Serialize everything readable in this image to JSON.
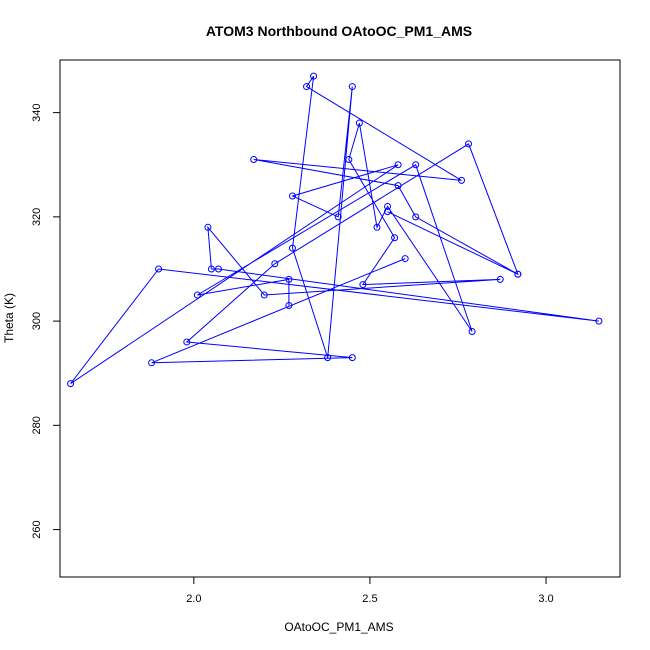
{
  "chart_data": {
    "type": "line",
    "title": "ATOM3 Northbound OAtoOC_PM1_AMS",
    "xlabel": "OAtoOC_PM1_AMS",
    "ylabel": "Theta (K)",
    "xlim": [
      1.62,
      3.21
    ],
    "ylim": [
      250.9,
      350.1
    ],
    "xticks": [
      2.0,
      2.5,
      3.0
    ],
    "xtick_labels": [
      "2.0",
      "2.5",
      "3.0"
    ],
    "yticks": [
      260,
      280,
      300,
      320,
      340
    ],
    "ytick_labels": [
      "260",
      "280",
      "300",
      "320",
      "340"
    ],
    "series_color": "#0000ff",
    "marker": "open-circle",
    "series": [
      {
        "x": [
          2.27,
          2.27,
          2.01,
          2.63,
          2.79,
          2.55,
          2.52,
          2.47,
          2.44,
          2.57,
          2.48,
          2.87,
          2.2,
          2.04,
          2.05,
          2.07,
          3.15,
          1.9,
          1.65,
          2.58,
          2.28,
          2.41,
          2.45,
          2.38,
          2.28,
          2.34,
          2.32,
          2.76,
          2.17,
          2.58,
          2.63,
          2.92,
          2.55,
          2.92,
          2.78,
          2.23,
          1.98,
          2.45,
          1.88,
          2.6
        ],
        "y": [
          303,
          308,
          305,
          330,
          298,
          322,
          318,
          338,
          331,
          316,
          307,
          308,
          305,
          318,
          310,
          310,
          300,
          310,
          288,
          330,
          324,
          320,
          345,
          293,
          314,
          347,
          345,
          327,
          331,
          326,
          320,
          309,
          321,
          309,
          334,
          311,
          296,
          293,
          292,
          312
        ]
      }
    ]
  }
}
